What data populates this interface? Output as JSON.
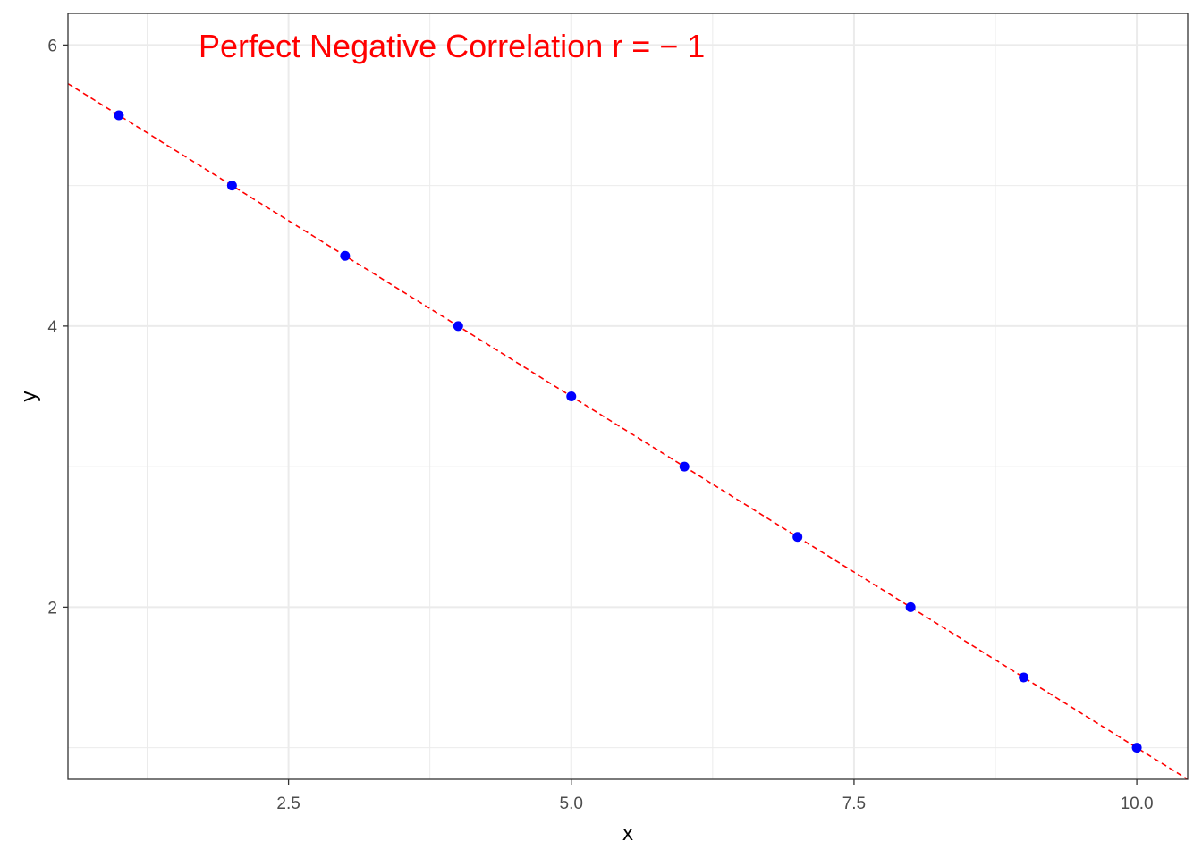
{
  "chart_data": {
    "type": "scatter",
    "title": "",
    "annotation": "Perfect Negative Correlation r = − 1",
    "annotation_color": "#ff0000",
    "xlabel": "x",
    "ylabel": "y",
    "xlim": [
      0.55,
      10.45
    ],
    "ylim": [
      0.775,
      6.225
    ],
    "x_ticks": [
      2.5,
      5.0,
      7.5,
      10.0
    ],
    "x_tick_labels": [
      "2.5",
      "5.0",
      "7.5",
      "10.0"
    ],
    "x_minor_ticks": [
      1.25,
      3.75,
      6.25,
      8.75
    ],
    "y_ticks": [
      2,
      4,
      6
    ],
    "y_tick_labels": [
      "2",
      "4",
      "6"
    ],
    "y_minor_ticks": [
      1,
      3,
      5
    ],
    "grid": true,
    "points": {
      "x": [
        1,
        2,
        3,
        4,
        5,
        6,
        7,
        8,
        9,
        10
      ],
      "y": [
        5.5,
        5.0,
        4.5,
        4.0,
        3.5,
        3.0,
        2.5,
        2.0,
        1.5,
        1.0
      ],
      "color": "#0000ff"
    },
    "fit_line": {
      "slope": -0.5,
      "intercept": 6.0,
      "style": "dashed",
      "color": "#ff0000"
    }
  }
}
